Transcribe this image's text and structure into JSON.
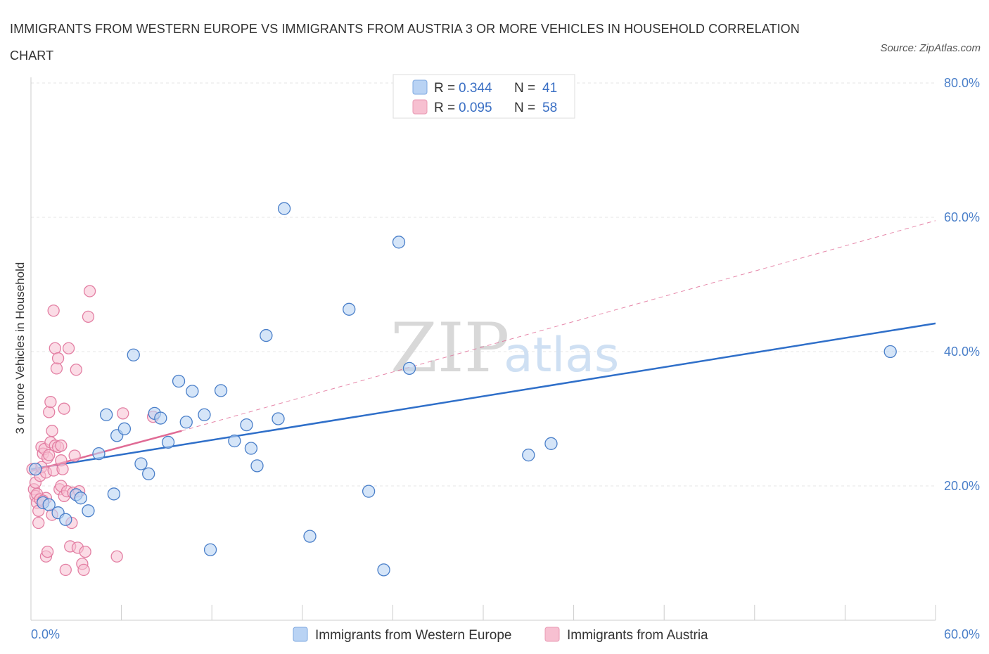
{
  "title": "IMMIGRANTS FROM WESTERN EUROPE VS IMMIGRANTS FROM AUSTRIA 3 OR MORE VEHICLES IN HOUSEHOLD CORRELATION CHART",
  "source": "Source: ZipAtlas.com",
  "watermark": {
    "zip": "ZIP",
    "atlas": "atlas"
  },
  "colors": {
    "blue": "#4a7fc9",
    "blue_fill": "#b9d3f4",
    "pink": "#e37fa3",
    "pink_fill": "#f7c0d1",
    "blue_line": "#2f6fc9",
    "pink_line": "#e06b95"
  },
  "legend_top": {
    "series1": {
      "r_label": "R =",
      "r_value": "0.344",
      "n_label": "N =",
      "n_value": "41"
    },
    "series2": {
      "r_label": "R =",
      "r_value": "0.095",
      "n_label": "N =",
      "n_value": "58"
    }
  },
  "chart_data": {
    "type": "scatter",
    "title": "IMMIGRANTS FROM WESTERN EUROPE VS IMMIGRANTS FROM AUSTRIA 3 OR MORE VEHICLES IN HOUSEHOLD CORRELATION CHART",
    "xlabel": "",
    "ylabel": "3 or more Vehicles in Household",
    "xlim": [
      0,
      60
    ],
    "ylim": [
      0,
      80
    ],
    "x_tick_labels": [
      "0.0%",
      "60.0%"
    ],
    "y_tick_labels": [
      "20.0%",
      "40.0%",
      "60.0%",
      "80.0%"
    ],
    "y_ticks": [
      20,
      40,
      60,
      80
    ],
    "series": [
      {
        "name": "Immigrants from Western Europe",
        "color": "blue",
        "R": 0.344,
        "N": 41,
        "trend": {
          "x": [
            0,
            60
          ],
          "y": [
            22.5,
            44.2
          ],
          "dashed_extension": false
        },
        "points": [
          [
            0.3,
            22.5
          ],
          [
            0.8,
            17.5
          ],
          [
            1.2,
            17.2
          ],
          [
            1.8,
            16
          ],
          [
            2.3,
            15
          ],
          [
            3.0,
            18.7
          ],
          [
            3.3,
            18.2
          ],
          [
            3.8,
            16.3
          ],
          [
            4.5,
            24.8
          ],
          [
            5.0,
            30.6
          ],
          [
            5.5,
            18.8
          ],
          [
            5.7,
            27.5
          ],
          [
            6.2,
            28.5
          ],
          [
            6.8,
            39.5
          ],
          [
            7.3,
            23.3
          ],
          [
            7.8,
            21.8
          ],
          [
            8.2,
            30.8
          ],
          [
            8.6,
            30.1
          ],
          [
            9.1,
            26.5
          ],
          [
            9.8,
            35.6
          ],
          [
            10.3,
            29.5
          ],
          [
            10.7,
            34.1
          ],
          [
            11.5,
            30.6
          ],
          [
            11.9,
            10.5
          ],
          [
            12.6,
            34.2
          ],
          [
            13.5,
            26.7
          ],
          [
            14.3,
            29.1
          ],
          [
            14.6,
            25.6
          ],
          [
            15.0,
            23.0
          ],
          [
            15.6,
            42.4
          ],
          [
            16.4,
            30.0
          ],
          [
            16.8,
            61.3
          ],
          [
            18.5,
            12.5
          ],
          [
            21.1,
            46.3
          ],
          [
            22.4,
            19.2
          ],
          [
            23.4,
            7.5
          ],
          [
            24.4,
            56.3
          ],
          [
            25.1,
            37.5
          ],
          [
            33.0,
            24.6
          ],
          [
            34.5,
            26.3
          ],
          [
            57.0,
            40.0
          ]
        ]
      },
      {
        "name": "Immigrants from Austria",
        "color": "pink",
        "R": 0.095,
        "N": 58,
        "trend": {
          "x": [
            0,
            10
          ],
          "y": [
            22.2,
            28.2
          ],
          "dashed_extension_to": [
            60,
            59.5
          ]
        },
        "points": [
          [
            0.1,
            22.5
          ],
          [
            0.2,
            19.5
          ],
          [
            0.3,
            18.5
          ],
          [
            0.3,
            20.5
          ],
          [
            0.4,
            17.5
          ],
          [
            0.5,
            16.3
          ],
          [
            0.5,
            14.5
          ],
          [
            0.6,
            21.5
          ],
          [
            0.7,
            22.8
          ],
          [
            0.7,
            25.8
          ],
          [
            0.8,
            24.8
          ],
          [
            0.9,
            25.5
          ],
          [
            1.0,
            18.2
          ],
          [
            1.0,
            22.0
          ],
          [
            1.1,
            24.2
          ],
          [
            1.2,
            31.0
          ],
          [
            1.3,
            32.5
          ],
          [
            1.3,
            26.5
          ],
          [
            1.4,
            28.2
          ],
          [
            1.4,
            15.7
          ],
          [
            1.5,
            22.3
          ],
          [
            1.5,
            46.1
          ],
          [
            1.6,
            40.5
          ],
          [
            1.6,
            26.0
          ],
          [
            1.7,
            37.5
          ],
          [
            1.8,
            39.0
          ],
          [
            1.8,
            25.8
          ],
          [
            1.9,
            19.5
          ],
          [
            2.0,
            20.0
          ],
          [
            2.0,
            23.8
          ],
          [
            2.1,
            22.5
          ],
          [
            2.2,
            31.5
          ],
          [
            2.2,
            18.5
          ],
          [
            2.3,
            7.5
          ],
          [
            2.4,
            19.2
          ],
          [
            2.5,
            40.5
          ],
          [
            2.6,
            11.0
          ],
          [
            2.7,
            14.5
          ],
          [
            2.8,
            19.0
          ],
          [
            2.9,
            24.5
          ],
          [
            3.0,
            37.3
          ],
          [
            3.1,
            10.8
          ],
          [
            3.2,
            19.2
          ],
          [
            3.4,
            8.4
          ],
          [
            3.5,
            7.5
          ],
          [
            3.6,
            10.2
          ],
          [
            3.8,
            45.2
          ],
          [
            3.9,
            49.0
          ],
          [
            1.0,
            9.5
          ],
          [
            1.1,
            10.2
          ],
          [
            0.4,
            18.8
          ],
          [
            0.6,
            18.0
          ],
          [
            5.7,
            9.5
          ],
          [
            6.1,
            30.8
          ],
          [
            8.1,
            30.3
          ],
          [
            0.8,
            17.8
          ],
          [
            1.2,
            24.6
          ],
          [
            2.0,
            26.0
          ]
        ]
      }
    ],
    "legend": [
      "Immigrants from Western Europe",
      "Immigrants from Austria"
    ]
  }
}
